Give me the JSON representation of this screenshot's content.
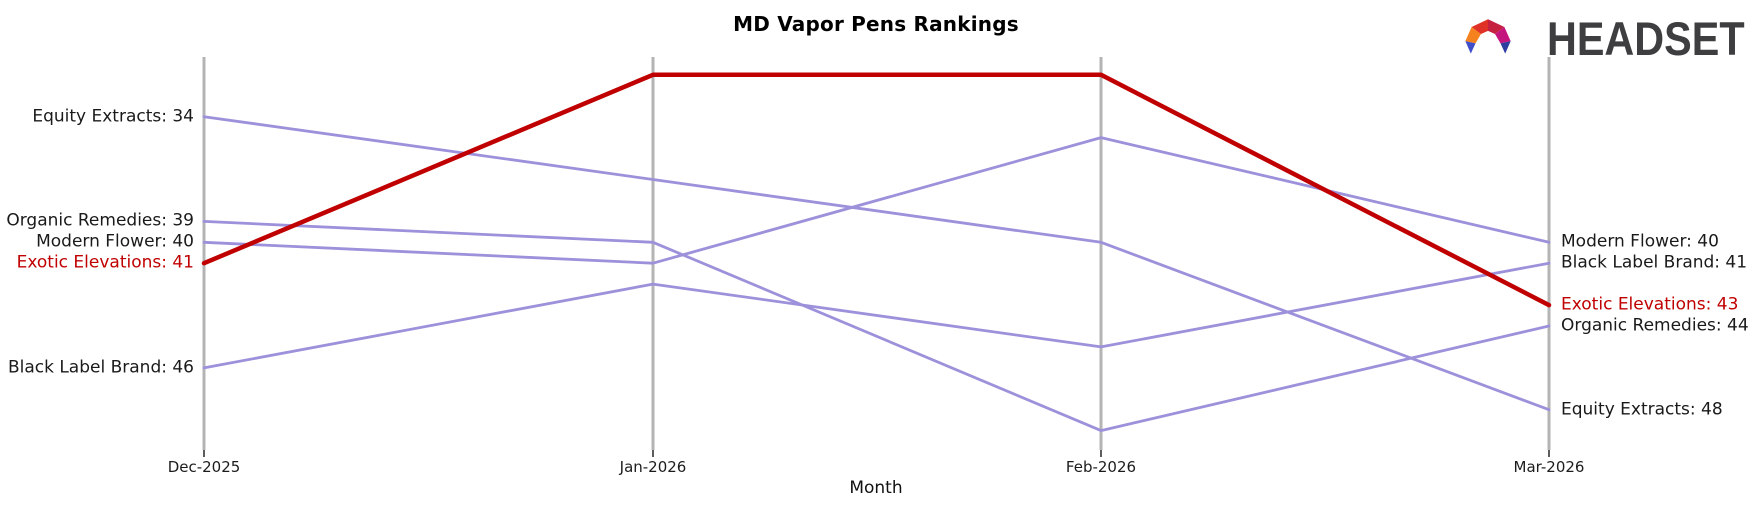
{
  "header": {
    "title": "MD Vapor Pens Rankings",
    "brand": "HEADSET",
    "logo_colors": [
      "#F5821F",
      "#E03127",
      "#C52040",
      "#C4157E",
      "#3E4FC9",
      "#2D3C9F"
    ]
  },
  "chart_data": {
    "type": "line",
    "subtype": "bump-ranking",
    "title": "MD Vapor Pens Rankings",
    "xlabel": "Month",
    "ylabel": "",
    "categories": [
      "Dec-2025",
      "Jan-2026",
      "Feb-2026",
      "Mar-2026"
    ],
    "y_inverted": true,
    "ylim": [
      31,
      50
    ],
    "grid": "vertical-axes-only",
    "legend_position": "none (direct labels at line ends)",
    "series": [
      {
        "name": "Equity Extracts",
        "values": [
          34,
          37,
          40,
          48
        ],
        "color": "#9C91DA",
        "highlight": false
      },
      {
        "name": "Organic Remedies",
        "values": [
          39,
          40,
          49,
          44
        ],
        "color": "#9C91DA",
        "highlight": false
      },
      {
        "name": "Modern Flower",
        "values": [
          40,
          41,
          35,
          40
        ],
        "color": "#9C91DA",
        "highlight": false
      },
      {
        "name": "Black Label Brand",
        "values": [
          46,
          42,
          45,
          41
        ],
        "color": "#9C91DA",
        "highlight": false
      },
      {
        "name": "Exotic Elevations",
        "values": [
          41,
          32,
          32,
          43
        ],
        "color": "#C00000",
        "highlight": true
      }
    ],
    "left_labels": [
      {
        "text": "Equity Extracts: 34",
        "rank": 34,
        "color": "#1a1a1a"
      },
      {
        "text": "Organic Remedies: 39",
        "rank": 39,
        "color": "#1a1a1a"
      },
      {
        "text": "Modern Flower: 40",
        "rank": 40,
        "color": "#1a1a1a"
      },
      {
        "text": "Exotic Elevations: 41",
        "rank": 41,
        "color": "#C00000"
      },
      {
        "text": "Black Label Brand: 46",
        "rank": 46,
        "color": "#1a1a1a"
      }
    ],
    "right_labels": [
      {
        "text": "Modern Flower: 40",
        "rank": 40,
        "color": "#1a1a1a"
      },
      {
        "text": "Black Label Brand: 41",
        "rank": 41,
        "color": "#1a1a1a"
      },
      {
        "text": "Exotic Elevations: 43",
        "rank": 43,
        "color": "#C00000"
      },
      {
        "text": "Organic Remedies: 44",
        "rank": 44,
        "color": "#1a1a1a"
      },
      {
        "text": "Equity Extracts: 48",
        "rank": 48,
        "color": "#1a1a1a"
      }
    ],
    "axis_color": "#b4b4b4",
    "tick_color": "#262626"
  }
}
